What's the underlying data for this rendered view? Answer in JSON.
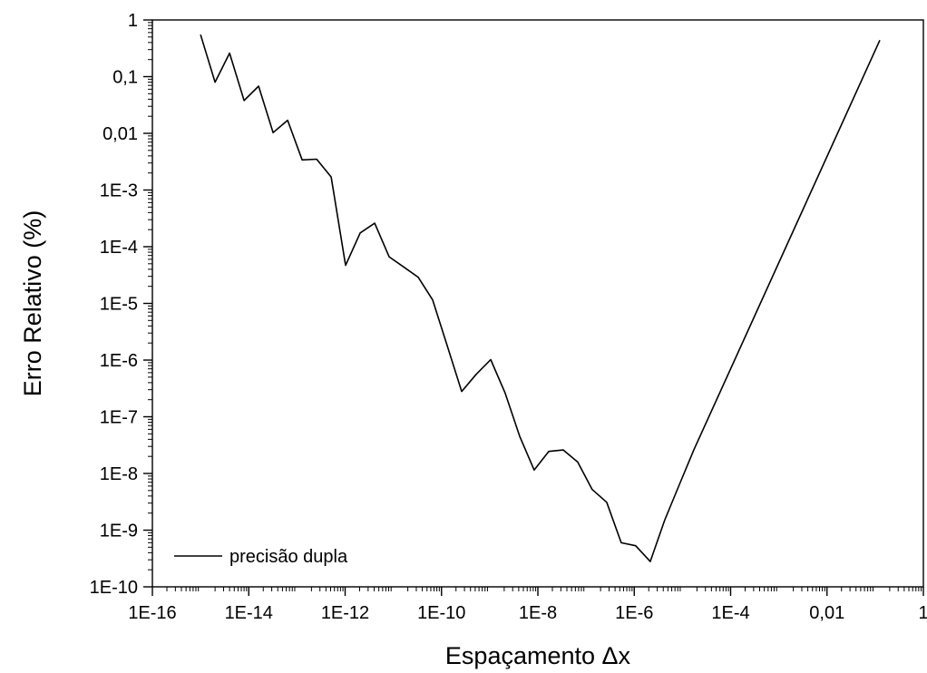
{
  "chart_data": {
    "type": "line",
    "title": "",
    "xlabel": "Espaçamento Δx",
    "ylabel": "Erro Relativo (%)",
    "x_scale": "log",
    "y_scale": "log",
    "xlim": [
      1e-16,
      1
    ],
    "ylim": [
      1e-10,
      1
    ],
    "grid": false,
    "legend_position": "bottom-left",
    "x_tick_values": [
      1e-16,
      1e-14,
      1e-12,
      1e-10,
      1e-08,
      1e-06,
      0.0001,
      0.01,
      1
    ],
    "x_tick_labels": [
      "1E-16",
      "1E-14",
      "1E-12",
      "1E-10",
      "1E-8",
      "1E-6",
      "1E-4",
      "0,01",
      "1"
    ],
    "y_tick_values": [
      1e-10,
      1e-09,
      1e-08,
      1e-07,
      1e-06,
      1e-05,
      0.0001,
      0.001,
      0.01,
      0.1,
      1
    ],
    "y_tick_labels": [
      "1E-10",
      "1E-9",
      "1E-8",
      "1E-7",
      "1E-6",
      "1E-5",
      "1E-4",
      "1E-3",
      "0,01",
      "0,1",
      "1"
    ],
    "series": [
      {
        "name": "precisão dupla",
        "color": "#000000",
        "x": [
          1e-15,
          2e-15,
          4e-15,
          8e-15,
          1.6e-14,
          3.2e-14,
          6.4e-14,
          1.28e-13,
          2.56e-13,
          5.12e-13,
          1.02e-12,
          2.05e-12,
          4.1e-12,
          8.2e-12,
          1.64e-11,
          3.28e-11,
          6.55e-11,
          1.31e-10,
          2.62e-10,
          5.24e-10,
          1.05e-09,
          2.1e-09,
          4.19e-09,
          8.39e-09,
          1.68e-08,
          3.36e-08,
          6.71e-08,
          1.34e-07,
          2.68e-07,
          5.37e-07,
          1.07e-06,
          2.15e-06,
          4.29e-06,
          8.59e-06,
          1.72e-05,
          0.125
        ],
        "y": [
          0.55,
          0.08,
          0.26,
          0.038,
          0.068,
          0.0103,
          0.017,
          0.0034,
          0.0035,
          0.0017,
          4.68e-05,
          0.000175,
          0.00026,
          6.65e-05,
          4.4e-05,
          2.9e-05,
          1.15e-05,
          1.8e-06,
          2.8e-07,
          5.6e-07,
          1.02e-06,
          2.6e-07,
          4.55e-08,
          1.15e-08,
          2.45e-08,
          2.6e-08,
          1.59e-08,
          5.2e-09,
          3.1e-09,
          6e-10,
          5.3e-10,
          2.8e-10,
          1.5e-09,
          6.3e-09,
          2.6e-08,
          0.44
        ]
      }
    ]
  }
}
